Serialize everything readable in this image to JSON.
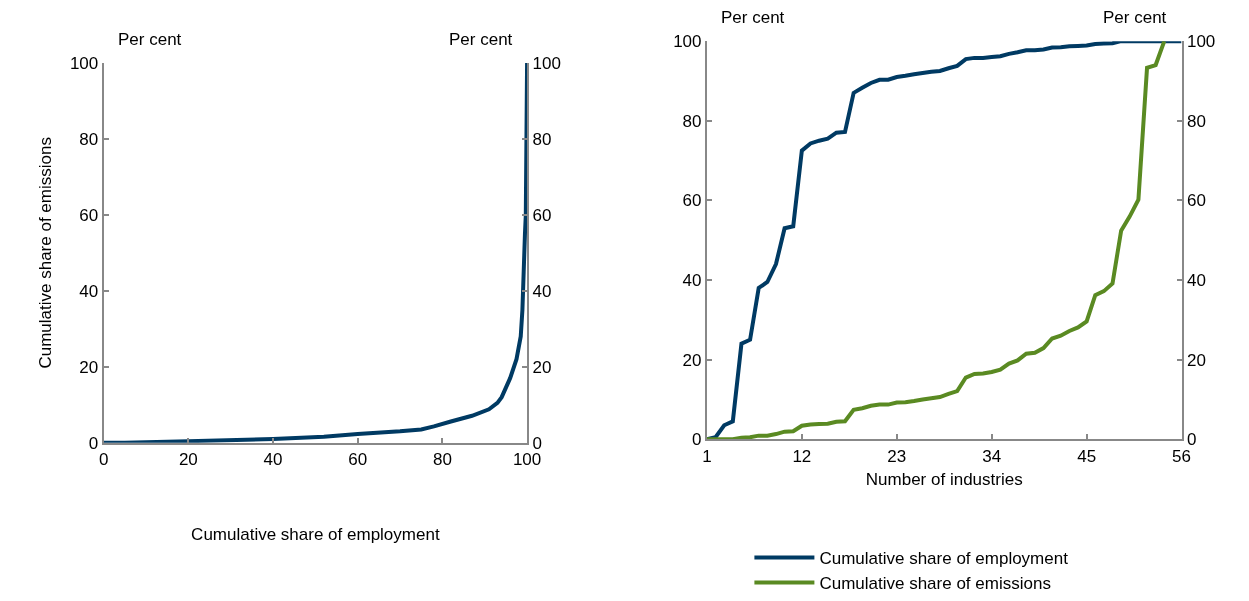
{
  "chart_data": [
    {
      "type": "line",
      "xlabel": "Cumulative share of employment",
      "ylabel": "Cumulative share of emissions",
      "annotations": [
        "Per cent",
        "Per cent"
      ],
      "series": [
        {
          "color": "#003a63",
          "x": [
            0,
            5,
            20,
            40,
            52,
            60,
            70,
            75,
            78,
            82,
            87,
            91,
            93,
            94,
            96,
            97.5,
            98.5,
            98.9,
            99.2,
            99.5,
            99.7,
            100
          ],
          "values": [
            0,
            0,
            0.4,
            1,
            1.6,
            2.3,
            3,
            3.5,
            4.3,
            5.6,
            7.1,
            8.8,
            10.5,
            12,
            17,
            22,
            28,
            35,
            45,
            55,
            60,
            100
          ]
        }
      ],
      "xlim": [
        0,
        100
      ],
      "xticks": [
        0,
        20,
        40,
        60,
        80,
        100
      ],
      "ylim": [
        0,
        100
      ],
      "yticks": [
        0,
        20,
        40,
        60,
        80,
        100
      ],
      "y2lim": [
        0,
        100
      ],
      "y2ticks": [
        0,
        20,
        40,
        60,
        80,
        100
      ],
      "legend": false
    },
    {
      "type": "line",
      "xlabel": "Number of industries",
      "annotations": [
        "Per cent",
        "Per cent"
      ],
      "x": [
        1,
        2,
        3,
        4,
        5,
        6,
        7,
        8,
        9,
        10,
        11,
        12,
        13,
        14,
        15,
        16,
        17,
        18,
        19,
        20,
        21,
        22,
        23,
        24,
        25,
        26,
        27,
        28,
        29,
        30,
        31,
        32,
        33,
        34,
        35,
        36,
        37,
        38,
        39,
        40,
        41,
        42,
        43,
        44,
        45,
        46,
        47,
        48,
        49,
        50,
        51,
        52,
        53,
        54,
        55,
        56
      ],
      "series": [
        {
          "name": "Cumulative share of employment",
          "color": "#003a63",
          "values": [
            0,
            0.5,
            3.5,
            4.5,
            24,
            25,
            38,
            39.5,
            44,
            53,
            53.5,
            72.5,
            74.3,
            75,
            75.5,
            77,
            77.2,
            87,
            88.3,
            89.5,
            90.3,
            90.3,
            91,
            91.3,
            91.7,
            92,
            92.3,
            92.5,
            93.2,
            93.8,
            95.5,
            95.8,
            95.8,
            96,
            96.2,
            96.8,
            97.2,
            97.7,
            97.7,
            97.9,
            98.4,
            98.5,
            98.7,
            98.8,
            98.9,
            99.3,
            99.4,
            99.5,
            100,
            100,
            100,
            100,
            100,
            100,
            100,
            100
          ]
        },
        {
          "name": "Cumulative share of emissions",
          "color": "#5a8a22",
          "values": [
            0,
            0,
            0,
            0,
            0.4,
            0.5,
            0.9,
            0.9,
            1.3,
            1.9,
            2,
            3.4,
            3.7,
            3.8,
            3.9,
            4.4,
            4.5,
            7.4,
            7.8,
            8.4,
            8.7,
            8.7,
            9.2,
            9.3,
            9.6,
            10,
            10.3,
            10.6,
            11.4,
            12.1,
            15.5,
            16.4,
            16.5,
            16.9,
            17.5,
            19,
            19.8,
            21.5,
            21.7,
            22.9,
            25.3,
            26,
            27.2,
            28.1,
            29.6,
            36.2,
            37.2,
            39.1,
            52.4,
            56,
            60.2,
            93.3,
            94,
            100,
            null,
            null
          ]
        }
      ],
      "xlim": [
        1,
        56
      ],
      "xticks": [
        1,
        12,
        23,
        34,
        45,
        56
      ],
      "ylim": [
        0,
        100
      ],
      "yticks": [
        0,
        20,
        40,
        60,
        80,
        100
      ],
      "y2lim": [
        0,
        100
      ],
      "y2ticks": [
        0,
        20,
        40,
        60,
        80,
        100
      ],
      "legend": "bottom"
    }
  ]
}
